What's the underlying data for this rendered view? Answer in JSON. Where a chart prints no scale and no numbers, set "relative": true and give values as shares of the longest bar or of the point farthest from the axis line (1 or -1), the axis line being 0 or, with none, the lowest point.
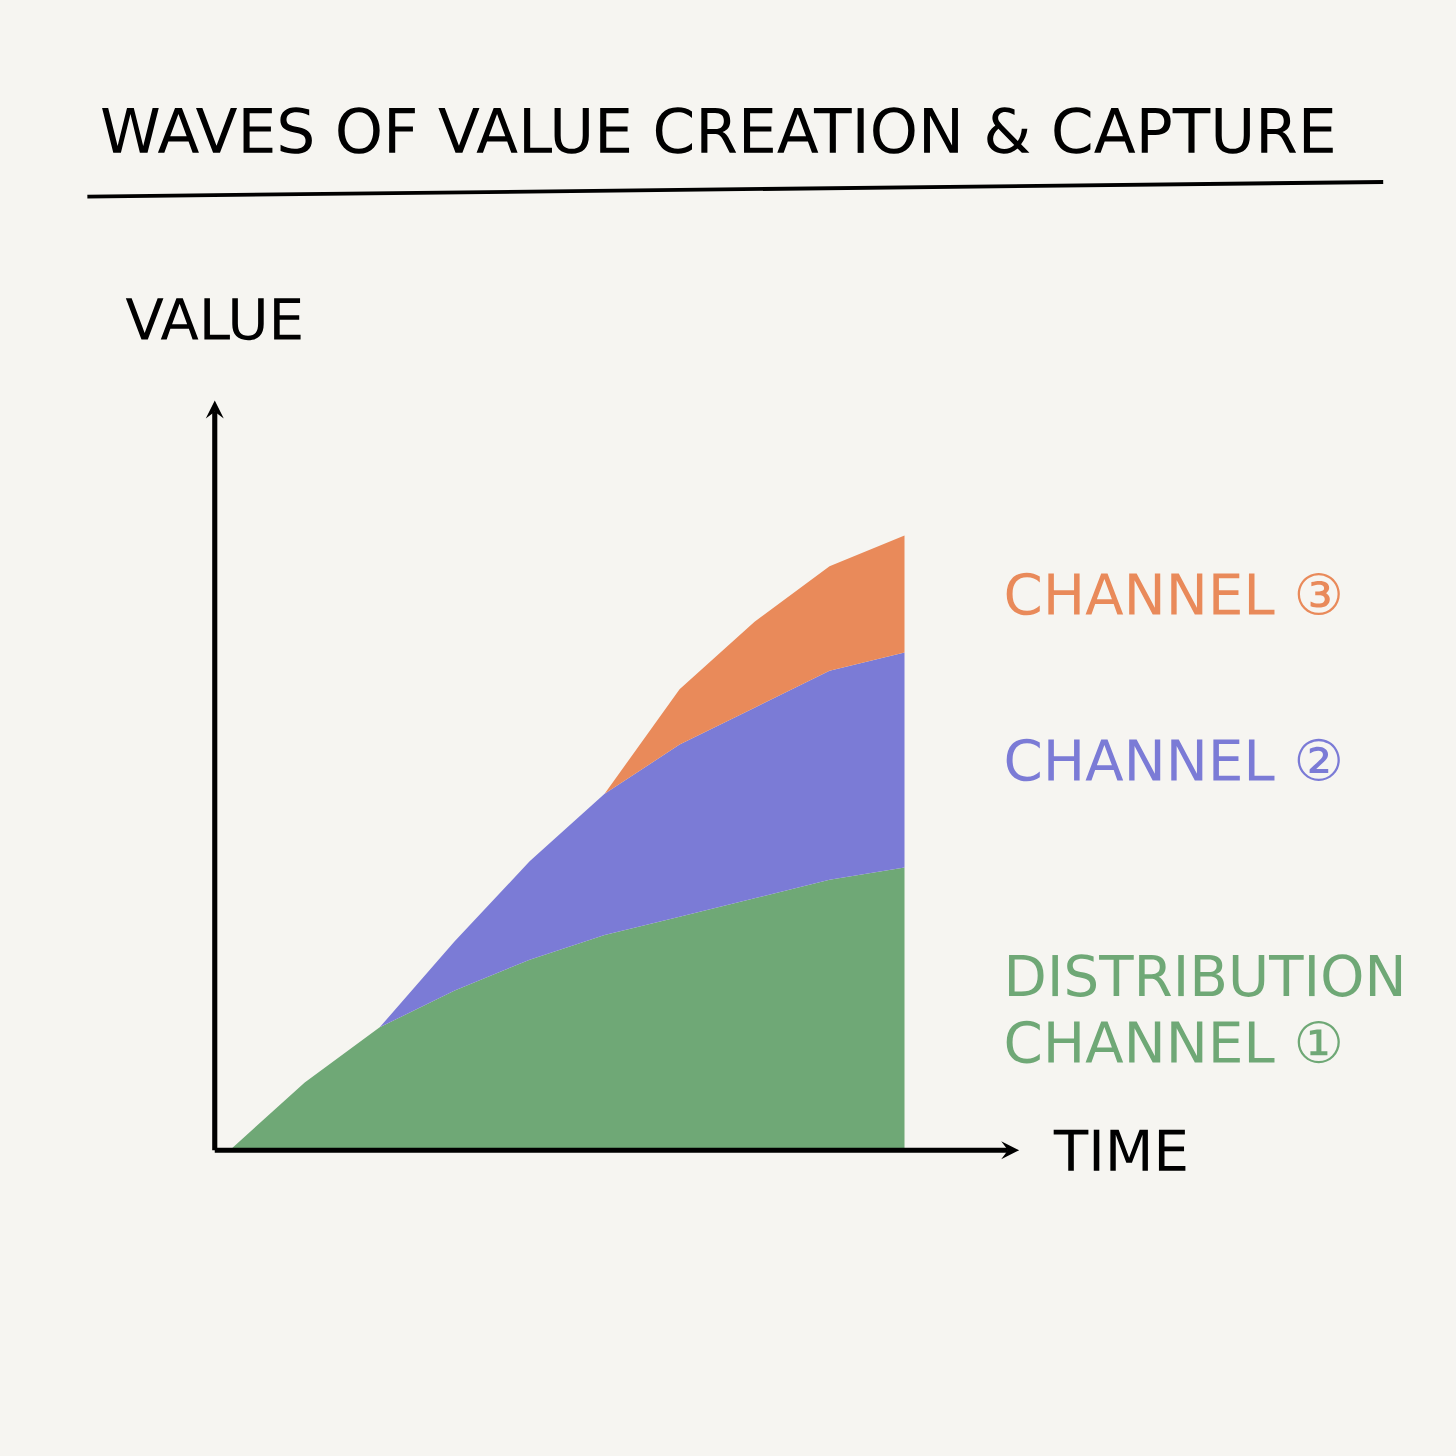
{
  "chart_data": {
    "type": "area",
    "title": "WAVES OF VALUE CREATION & CAPTURE",
    "xlabel": "TIME",
    "ylabel": "VALUE",
    "relative": true,
    "stacked": true,
    "categories": [
      null,
      null,
      null,
      null,
      null,
      null,
      null,
      null,
      null,
      null
    ],
    "series": [
      {
        "name": "DISTRIBUTION CHANNEL ①",
        "color": "#6fa876",
        "values": [
          0,
          0.11,
          0.2,
          0.26,
          0.31,
          0.35,
          0.38,
          0.41,
          0.44,
          0.46
        ]
      },
      {
        "name": "CHANNEL ②",
        "color": "#7b7bd6",
        "values": [
          null,
          null,
          0,
          0.08,
          0.16,
          0.23,
          0.28,
          0.31,
          0.34,
          0.35
        ]
      },
      {
        "name": "CHANNEL ③",
        "color": "#e98a5a",
        "values": [
          null,
          null,
          null,
          null,
          null,
          0,
          0.09,
          0.14,
          0.17,
          0.19
        ]
      }
    ]
  }
}
